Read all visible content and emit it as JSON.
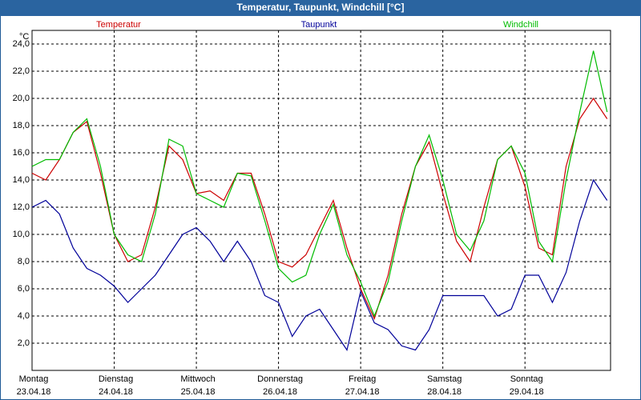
{
  "chart_data": {
    "type": "line",
    "title": "Temperatur, Taupunkt, Windchill [°C]",
    "y_label": "°C",
    "x": [
      0,
      4,
      8,
      12,
      16,
      20,
      24,
      28,
      32,
      36,
      40,
      44,
      48,
      52,
      56,
      60,
      64,
      68,
      72,
      76,
      80,
      84,
      88,
      92,
      96,
      100,
      104,
      108,
      112,
      116,
      120,
      124,
      128,
      132,
      136,
      140,
      144,
      148,
      152,
      156,
      160,
      164,
      168
    ],
    "series": [
      {
        "name": "Temperatur",
        "color": "#cc0000",
        "values": [
          14.5,
          14.0,
          15.5,
          17.5,
          18.3,
          14.5,
          10.0,
          8.0,
          8.5,
          12.0,
          16.5,
          15.5,
          13.0,
          13.2,
          12.5,
          14.5,
          14.5,
          11.5,
          8.0,
          7.6,
          8.5,
          10.5,
          12.5,
          9.0,
          6.0,
          3.8,
          7.0,
          11.5,
          15.0,
          16.8,
          13.0,
          9.5,
          8.0,
          12.0,
          15.5,
          16.5,
          13.5,
          9.0,
          8.5,
          15.0,
          18.5,
          20.0,
          18.5
        ]
      },
      {
        "name": "Taupunkt",
        "color": "#000099",
        "values": [
          12.0,
          12.5,
          11.5,
          9.0,
          7.5,
          7.0,
          6.2,
          5.0,
          6.0,
          7.0,
          8.5,
          10.0,
          10.5,
          9.5,
          8.0,
          9.5,
          8.0,
          5.5,
          5.0,
          2.5,
          4.0,
          4.5,
          3.0,
          1.5,
          5.8,
          3.5,
          3.0,
          1.8,
          1.5,
          3.0,
          5.5,
          5.5,
          5.5,
          5.5,
          4.0,
          4.5,
          7.0,
          7.0,
          5.0,
          7.2,
          11.0,
          14.0,
          12.5
        ]
      },
      {
        "name": "Windchill",
        "color": "#00bb00",
        "values": [
          15.0,
          15.5,
          15.5,
          17.5,
          18.5,
          15.0,
          10.0,
          8.5,
          8.0,
          11.5,
          17.0,
          16.5,
          13.0,
          12.5,
          12.0,
          14.5,
          14.3,
          11.0,
          7.5,
          6.5,
          7.0,
          10.0,
          12.2,
          8.5,
          6.5,
          4.0,
          6.5,
          11.0,
          15.0,
          17.3,
          14.0,
          10.0,
          8.8,
          11.0,
          15.5,
          16.5,
          14.5,
          9.5,
          8.0,
          14.0,
          19.0,
          23.5,
          19.0
        ]
      }
    ],
    "xlim": [
      0,
      169
    ],
    "xticks": [
      {
        "value": 0,
        "label": "Montag"
      },
      {
        "value": 24,
        "label": "Dienstag"
      },
      {
        "value": 48,
        "label": "Mittwoch"
      },
      {
        "value": 72,
        "label": "Donnerstag"
      },
      {
        "value": 96,
        "label": "Freitag"
      },
      {
        "value": 120,
        "label": "Samstag"
      },
      {
        "value": 144,
        "label": "Sonntag"
      }
    ],
    "xtick_dates": [
      "23.04.18",
      "24.04.18",
      "25.04.18",
      "26.04.18",
      "27.04.18",
      "28.04.18",
      "29.04.18"
    ],
    "ylim": [
      0,
      25
    ],
    "yticks": [
      {
        "value": 2,
        "label": "2,0"
      },
      {
        "value": 4,
        "label": "4,0"
      },
      {
        "value": 6,
        "label": "6,0"
      },
      {
        "value": 8,
        "label": "8,0"
      },
      {
        "value": 10,
        "label": "10,0"
      },
      {
        "value": 12,
        "label": "12,0"
      },
      {
        "value": 14,
        "label": "14,0"
      },
      {
        "value": 16,
        "label": "16,0"
      },
      {
        "value": 18,
        "label": "18,0"
      },
      {
        "value": 20,
        "label": "20,0"
      },
      {
        "value": 22,
        "label": "22,0"
      },
      {
        "value": 24,
        "label": "24,0"
      }
    ],
    "grid": true
  }
}
